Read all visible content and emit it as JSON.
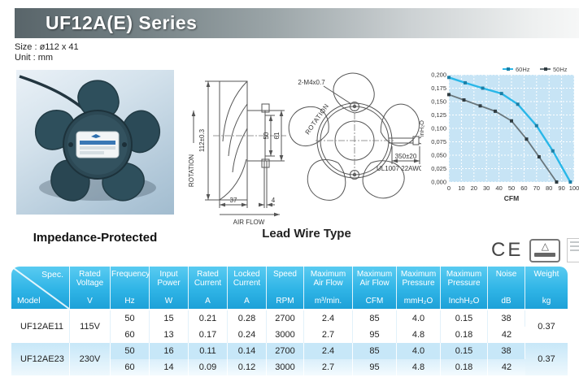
{
  "page": {
    "title": "UF12A(E) Series",
    "size_label": "Size : ø112 x 41",
    "unit_label": "Unit : mm"
  },
  "captions": {
    "photo": "Impedance-Protected",
    "drawing": "Lead Wire Type"
  },
  "drawing": {
    "labels": {
      "rotation_side": "ROTATION",
      "airflow": "AIR FLOW",
      "height": "112±0.3",
      "inner_dim_small": "50",
      "inner_dim_large": "61",
      "depth": "37",
      "stub": "4",
      "screw": "2-M4x0.7",
      "rotation_front": "ROTATION",
      "wire_length": "350±20",
      "wire_spec": "UL1007 22AWG"
    }
  },
  "certifications": {
    "ce_label": "CE"
  },
  "chart_data": {
    "type": "line",
    "title": "",
    "xlabel": "CFM",
    "ylabel": "inH₂O",
    "xlim": [
      0,
      100
    ],
    "ylim": [
      0,
      0.2
    ],
    "x_ticks": [
      "0",
      "10",
      "20",
      "30",
      "40",
      "50",
      "60",
      "70",
      "80",
      "90",
      "100"
    ],
    "y_ticks": [
      "0,200",
      "0,175",
      "0,150",
      "0,125",
      "0,100",
      "0,075",
      "0,050",
      "0,025",
      "0,000"
    ],
    "grid": true,
    "legend_position": "top-right",
    "series": [
      {
        "name": "60Hz",
        "color": "#29b7e8",
        "marker_color": "#1b7fa6",
        "points": [
          [
            0,
            0.195
          ],
          [
            13,
            0.185
          ],
          [
            27,
            0.175
          ],
          [
            42,
            0.165
          ],
          [
            55,
            0.145
          ],
          [
            70,
            0.105
          ],
          [
            83,
            0.058
          ],
          [
            97,
            0.0
          ]
        ]
      },
      {
        "name": "50Hz",
        "color": "#6a767b",
        "marker_color": "#303c41",
        "points": [
          [
            0,
            0.163
          ],
          [
            12,
            0.153
          ],
          [
            25,
            0.142
          ],
          [
            37,
            0.132
          ],
          [
            50,
            0.114
          ],
          [
            62,
            0.08
          ],
          [
            72,
            0.047
          ],
          [
            86,
            0.0
          ]
        ]
      }
    ]
  },
  "table": {
    "headers": [
      {
        "top": "Spec.",
        "bottom": "Model",
        "diagonal": true
      },
      {
        "top": "Rated Voltage",
        "bottom": "V"
      },
      {
        "top": "Frequency",
        "bottom": "Hz"
      },
      {
        "top": "Input Power",
        "bottom": "W"
      },
      {
        "top": "Rated Current",
        "bottom": "A"
      },
      {
        "top": "Locked Current",
        "bottom": "A"
      },
      {
        "top": "Speed",
        "bottom": "RPM"
      },
      {
        "top": "Maximum Air Flow",
        "bottom": "m³/min."
      },
      {
        "top": "Maximum Air Flow",
        "bottom": "CFM"
      },
      {
        "top": "Maximum Pressure",
        "bottom": "mmH₂O"
      },
      {
        "top": "Maximum Pressure",
        "bottom": "InchH₂O"
      },
      {
        "top": "Noise",
        "bottom": "dB"
      },
      {
        "top": "Weight",
        "bottom": "kg"
      }
    ],
    "groups": [
      {
        "model": "UF12AE11",
        "voltage": "115V",
        "weight": "0.37",
        "shaded": false,
        "rows": [
          [
            "50",
            "15",
            "0.21",
            "0.28",
            "2700",
            "2.4",
            "85",
            "4.0",
            "0.15",
            "38"
          ],
          [
            "60",
            "13",
            "0.17",
            "0.24",
            "3000",
            "2.7",
            "95",
            "4.8",
            "0.18",
            "42"
          ]
        ]
      },
      {
        "model": "UF12AE23",
        "voltage": "230V",
        "weight": "0.37",
        "shaded": true,
        "rows": [
          [
            "50",
            "16",
            "0.11",
            "0.14",
            "2700",
            "2.4",
            "85",
            "4.0",
            "0.15",
            "38"
          ],
          [
            "60",
            "14",
            "0.09",
            "0.12",
            "3000",
            "2.7",
            "95",
            "4.8",
            "0.18",
            "42"
          ]
        ]
      }
    ]
  }
}
